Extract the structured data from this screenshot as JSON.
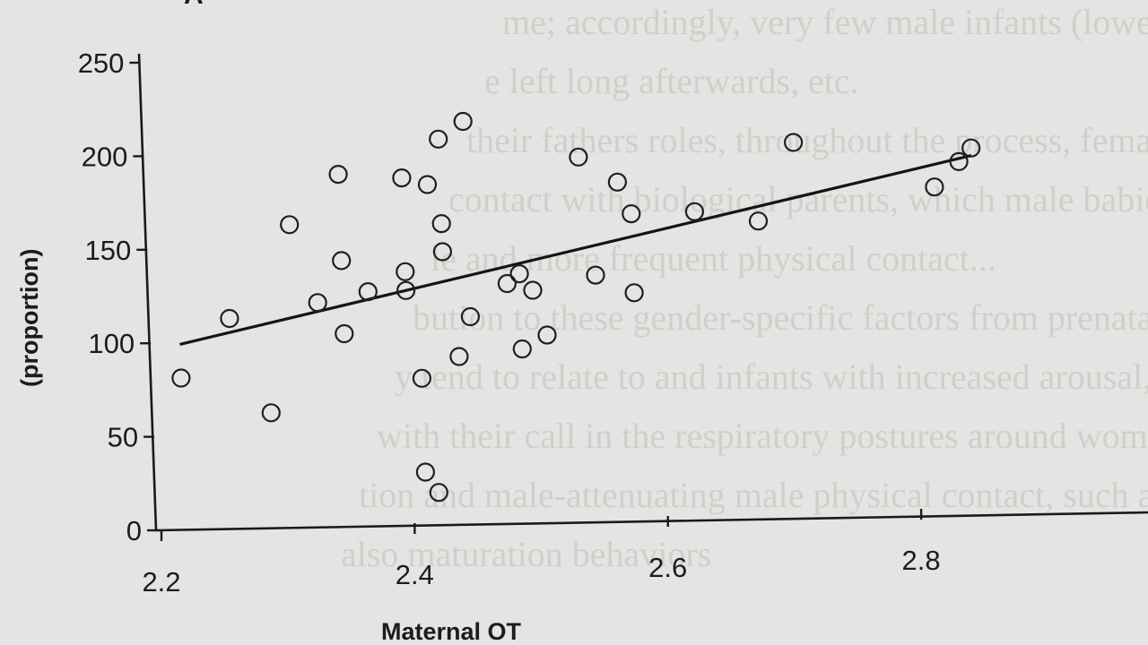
{
  "chart_data": {
    "type": "scatter",
    "panel_label": "A",
    "xlabel": "Maternal OT",
    "ylabel": "(proportion)",
    "xlim": [
      2.2,
      2.9
    ],
    "ylim": [
      0,
      250
    ],
    "x_ticks": [
      2.2,
      2.4,
      2.6,
      2.8
    ],
    "x_tick_labels": [
      "2.2",
      "2.4",
      "2.6",
      "2.8"
    ],
    "y_ticks": [
      0,
      50,
      100,
      150,
      200,
      250
    ],
    "y_tick_labels": [
      "0",
      "50",
      "100",
      "150",
      "200",
      "250"
    ],
    "grid": false,
    "legend": "none",
    "points": [
      {
        "x": 2.22,
        "y": 81
      },
      {
        "x": 2.26,
        "y": 112
      },
      {
        "x": 2.29,
        "y": 61
      },
      {
        "x": 2.31,
        "y": 161
      },
      {
        "x": 2.33,
        "y": 119
      },
      {
        "x": 2.35,
        "y": 187
      },
      {
        "x": 2.35,
        "y": 141
      },
      {
        "x": 2.35,
        "y": 102
      },
      {
        "x": 2.37,
        "y": 124
      },
      {
        "x": 2.4,
        "y": 184
      },
      {
        "x": 2.4,
        "y": 134
      },
      {
        "x": 2.4,
        "y": 124
      },
      {
        "x": 2.41,
        "y": 77
      },
      {
        "x": 2.41,
        "y": 27
      },
      {
        "x": 2.42,
        "y": 16
      },
      {
        "x": 2.42,
        "y": 180
      },
      {
        "x": 2.43,
        "y": 204
      },
      {
        "x": 2.43,
        "y": 159
      },
      {
        "x": 2.43,
        "y": 144
      },
      {
        "x": 2.44,
        "y": 88
      },
      {
        "x": 2.45,
        "y": 109
      },
      {
        "x": 2.45,
        "y": 213
      },
      {
        "x": 2.48,
        "y": 126
      },
      {
        "x": 2.49,
        "y": 131
      },
      {
        "x": 2.49,
        "y": 91
      },
      {
        "x": 2.5,
        "y": 122
      },
      {
        "x": 2.51,
        "y": 98
      },
      {
        "x": 2.54,
        "y": 192
      },
      {
        "x": 2.55,
        "y": 129
      },
      {
        "x": 2.57,
        "y": 178
      },
      {
        "x": 2.58,
        "y": 161
      },
      {
        "x": 2.58,
        "y": 119
      },
      {
        "x": 2.63,
        "y": 161
      },
      {
        "x": 2.68,
        "y": 155
      },
      {
        "x": 2.71,
        "y": 196
      },
      {
        "x": 2.82,
        "y": 170
      },
      {
        "x": 2.84,
        "y": 183
      },
      {
        "x": 2.85,
        "y": 190
      }
    ],
    "fit_line": {
      "x": [
        2.22,
        2.85
      ],
      "y": [
        99,
        186
      ]
    }
  },
  "background_text": [
    "me; accordingly, very few male infants (lower-left...",
    "e left long afterwards, etc.",
    "their fathers roles, throughout the process, female babies",
    "contact with biological parents, which male babies tend",
    "le and more frequent physical contact...",
    "bution to these gender-specific factors from prenatal hormones.",
    "y tend to relate to and infants with increased arousal, which",
    "with their call in the respiratory postures around women, th",
    "tion and male-attenuating male physical contact, such as those",
    "also maturation behaviors"
  ]
}
